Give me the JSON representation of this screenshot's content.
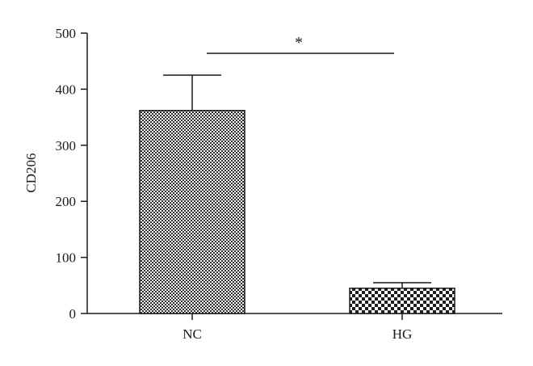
{
  "chart_data": {
    "type": "bar",
    "categories": [
      "NC",
      "HG"
    ],
    "values": [
      362,
      45
    ],
    "errors": [
      63,
      10
    ],
    "ylabel": "CD206",
    "xlabel": "",
    "ylim": [
      0,
      500
    ],
    "yticks": [
      "0",
      "100",
      "200",
      "300",
      "400",
      "500"
    ],
    "grid": false,
    "significance": {
      "between": [
        "NC",
        "HG"
      ],
      "label": "*"
    },
    "bar_patterns": [
      "dense-dots",
      "checkerboard"
    ]
  }
}
